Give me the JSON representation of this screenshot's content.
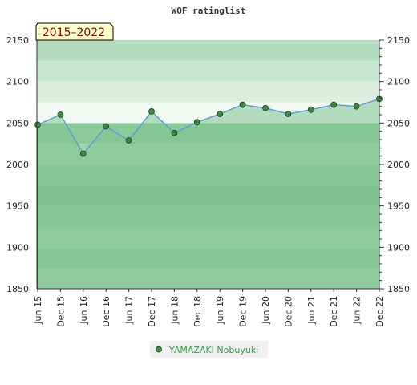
{
  "chart_data": {
    "type": "line",
    "title": "WOF ratinglist",
    "period_badge": "2015–2022",
    "xlabel": "",
    "ylabel": "",
    "categories": [
      "Jun 15",
      "Dec 15",
      "Jun 16",
      "Dec 16",
      "Jun 17",
      "Dec 17",
      "Jun 18",
      "Dec 18",
      "Jun 19",
      "Dec 19",
      "Jun 20",
      "Dec 20",
      "Jun 21",
      "Dec 21",
      "Jun 22",
      "Dec 22"
    ],
    "series": [
      {
        "name": "YAMAZAKI Nobuyuki",
        "values": [
          2048,
          2060,
          2013,
          2046,
          2029,
          2064,
          2038,
          2051,
          2061,
          2072,
          2068,
          2061,
          2066,
          2072,
          2070,
          2079
        ]
      }
    ],
    "ylim": [
      1850,
      2150
    ],
    "y_ticks": [
      1850,
      1900,
      1950,
      2000,
      2050,
      2100,
      2150
    ],
    "y_axis_both_sides": true,
    "grid": true,
    "legend_position": "bottom-center",
    "colors": {
      "line": "#5aa0d8",
      "marker": "#3d8a3d",
      "area_fill": "#7fc391",
      "legend_text": "#3a9a4a",
      "badge_bg": "#ffffcc",
      "badge_text": "#8b0000"
    }
  }
}
